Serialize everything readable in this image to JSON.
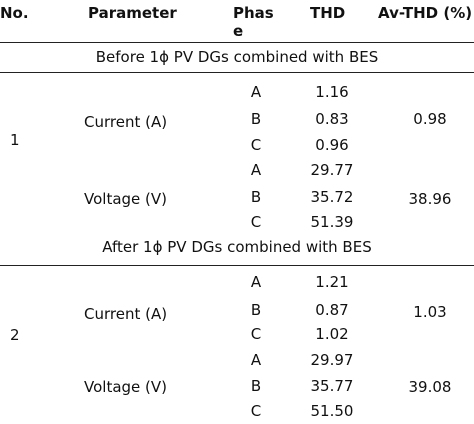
{
  "headers": {
    "no": "No.",
    "parameter": "Parameter",
    "phase_line1": "Phas",
    "phase_line2": "e",
    "thd": "THD",
    "avthd": "Av-THD (%)"
  },
  "groups": [
    {
      "caption": "Before 1ϕ PV DGs combined with BES",
      "no": "1",
      "rows": [
        {
          "parameter": "Current (A)",
          "phases": [
            "A",
            "B",
            "C"
          ],
          "thd": [
            "1.16",
            "0.83",
            "0.96"
          ],
          "avthd": "0.98"
        },
        {
          "parameter": "Voltage (V)",
          "phases": [
            "A",
            "B",
            "C"
          ],
          "thd": [
            "29.77",
            "35.72",
            "51.39"
          ],
          "avthd": "38.96"
        }
      ]
    },
    {
      "caption": "After 1ϕ PV DGs combined  with BES",
      "no": "2",
      "rows": [
        {
          "parameter": "Current (A)",
          "phases": [
            "A",
            "B",
            "C"
          ],
          "thd": [
            "1.21",
            "0.87",
            "1.02"
          ],
          "avthd": "1.03"
        },
        {
          "parameter": "Voltage (V)",
          "phases": [
            "A",
            "B",
            "C"
          ],
          "thd": [
            "29.97",
            "35.77",
            "51.50"
          ],
          "avthd": "39.08"
        }
      ]
    }
  ]
}
